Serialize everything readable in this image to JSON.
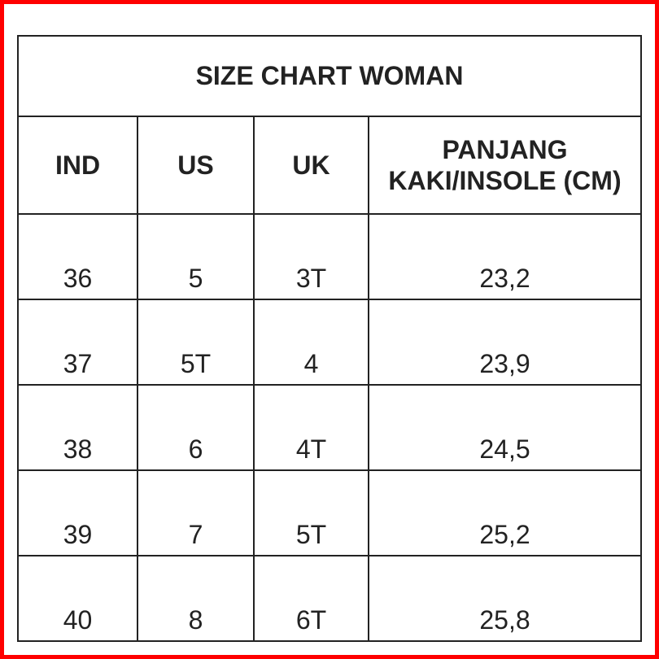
{
  "title": "SIZE CHART WOMAN",
  "headers": [
    "IND",
    "US",
    "UK",
    "PANJANG",
    "KAKI/INSOLE (CM)"
  ],
  "rows": [
    [
      "36",
      "5",
      "3T",
      "23,2"
    ],
    [
      "37",
      "5T",
      "4",
      "23,9"
    ],
    [
      "38",
      "6",
      "4T",
      "24,5"
    ],
    [
      "39",
      "7",
      "5T",
      "25,2"
    ],
    [
      "40",
      "8",
      "6T",
      "25,8"
    ]
  ],
  "colors": {
    "frame": "#ff0000",
    "lines": "#222222"
  }
}
